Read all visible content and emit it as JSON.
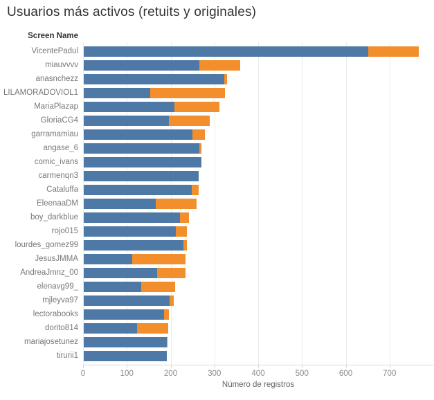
{
  "title": "Usuarios más activos (retuits y originales)",
  "rows_header": "Screen Name",
  "colors": {
    "blue": "#4e79a7",
    "orange": "#f28e2b",
    "gridline": "#ebebeb",
    "axis_line": "#d9d9d9"
  },
  "chart_data": {
    "type": "bar",
    "orientation": "horizontal",
    "stacked": true,
    "title": "Usuarios más activos (retuits y originales)",
    "xlabel": "Número de registros",
    "ylabel": "Screen Name",
    "xlim": [
      0,
      800
    ],
    "xticks": [
      0,
      100,
      200,
      300,
      400,
      500,
      600,
      700
    ],
    "grid": true,
    "legend": "none",
    "categories": [
      "VicentePadul",
      "miauvvvv",
      "anasnchezz",
      "LILAMORADOVIOL1",
      "MariaPlazap",
      "GloriaCG4",
      "garramamiau",
      "angase_6",
      "comic_ivans",
      "carmenqn3",
      "Cataluffa",
      "EleenaaDM",
      "boy_darkblue",
      "rojo015",
      "lourdes_gomez99",
      "JesusJMMA",
      "AndreaJmnz_00",
      "elenavg99_",
      "mjleyva97",
      "lectorabooks",
      "dorito814",
      "mariajosetunez",
      "tirurii1"
    ],
    "series": [
      {
        "name": "blue",
        "color": "#4e79a7",
        "values": [
          650,
          264,
          321,
          152,
          207,
          194,
          248,
          264,
          268,
          262,
          246,
          164,
          220,
          211,
          227,
          111,
          168,
          131,
          196,
          184,
          122,
          189,
          189
        ]
      },
      {
        "name": "orange",
        "color": "#f28e2b",
        "values": [
          115,
          93,
          6,
          171,
          103,
          94,
          29,
          5,
          0,
          0,
          16,
          93,
          21,
          25,
          9,
          122,
          65,
          78,
          9,
          11,
          71,
          3,
          0
        ]
      }
    ],
    "totals": [
      765,
      357,
      327,
      323,
      310,
      288,
      277,
      269,
      268,
      262,
      262,
      257,
      241,
      236,
      236,
      233,
      233,
      209,
      205,
      195,
      193,
      192,
      189
    ]
  }
}
